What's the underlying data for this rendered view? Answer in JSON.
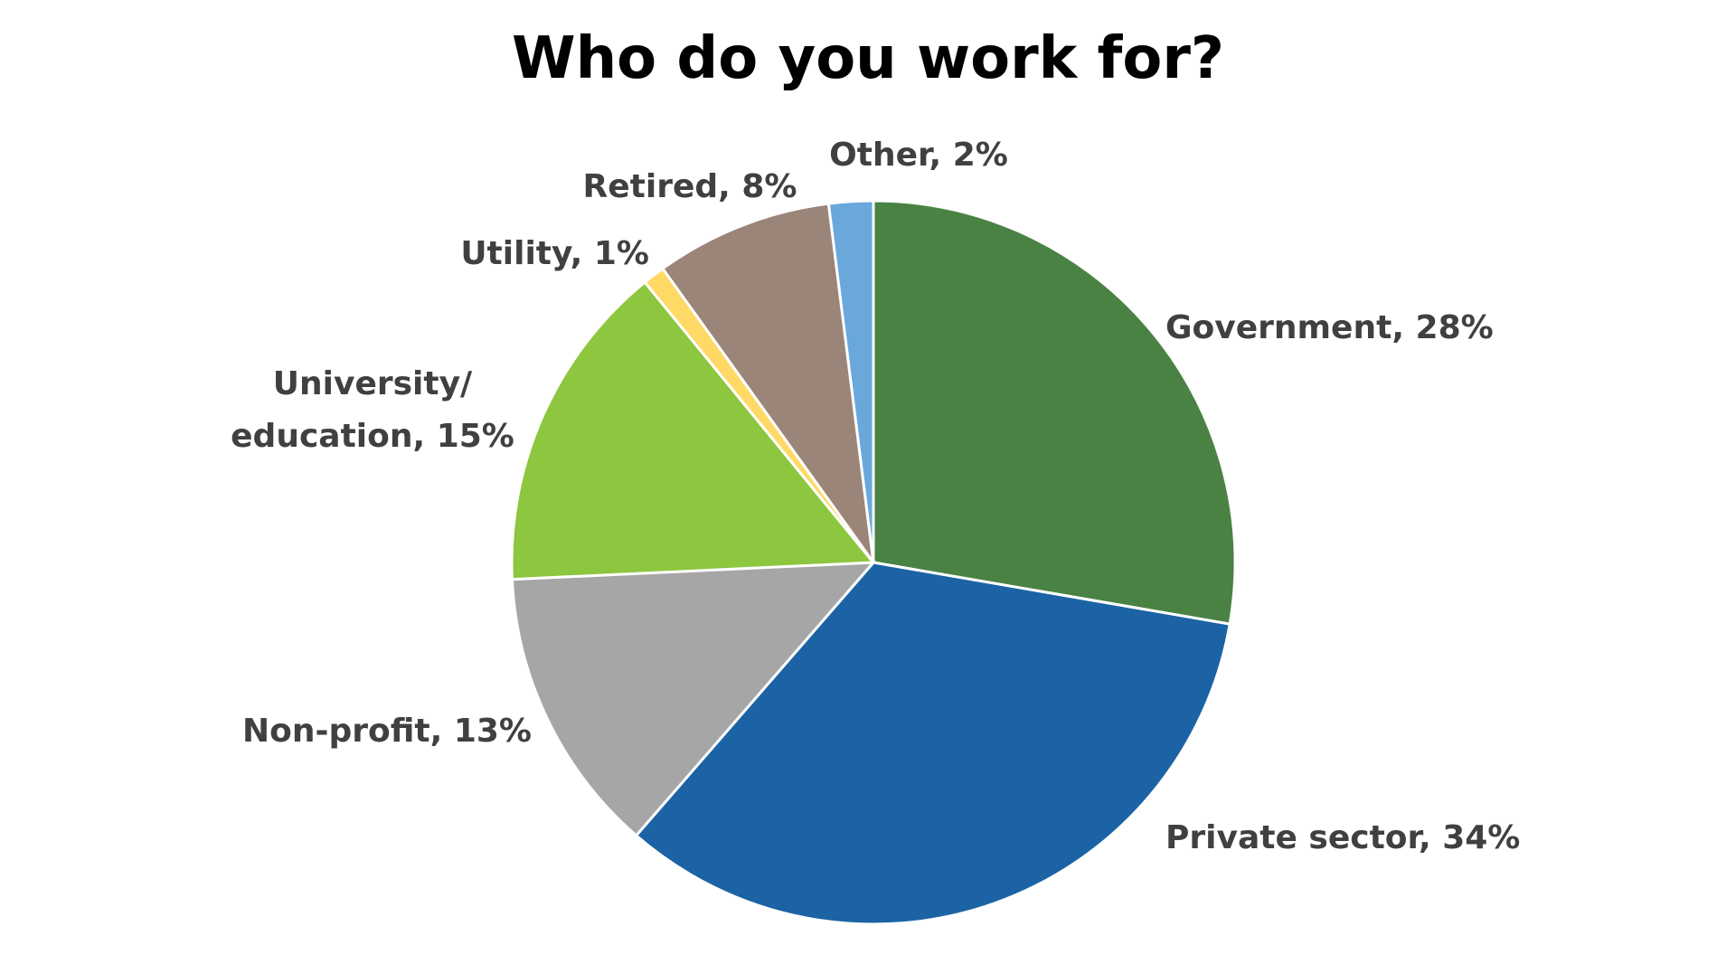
{
  "chart_data": {
    "type": "pie",
    "title": "Who do you work for?",
    "labels": [
      "Government, 28%",
      "Private sector, 34%",
      "Non-profit, 13%",
      "University/\neducation, 15%",
      "Utility, 1%",
      "Retired, 8%",
      "Other, 2%"
    ],
    "values": [
      28,
      34,
      13,
      15,
      1,
      8,
      2
    ],
    "colors": [
      "#4a8244",
      "#1b63a5",
      "#a6a6a6",
      "#8dc63f",
      "#ffd966",
      "#9b8579",
      "#6aa8dc"
    ]
  }
}
